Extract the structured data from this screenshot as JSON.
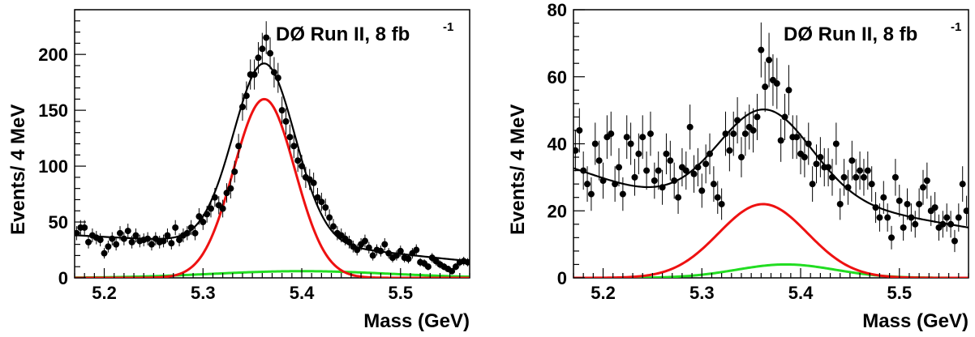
{
  "chart_data": [
    {
      "type": "scatter",
      "annotation": "DØ Run II, 8 fb",
      "annotation_sup": "-1",
      "xlabel": "Mass (GeV)",
      "ylabel": "Events/  4 MeV",
      "xlim": [
        5.17,
        5.57
      ],
      "ylim": [
        0,
        240
      ],
      "xticks": [
        "5.2",
        "5.3",
        "5.4",
        "5.5"
      ],
      "yticks": [
        "0",
        "50",
        "100",
        "150",
        "200"
      ],
      "series": [
        {
          "kind": "points",
          "color": "#000000",
          "x": [
            5.172,
            5.176,
            5.18,
            5.184,
            5.188,
            5.192,
            5.196,
            5.2,
            5.204,
            5.208,
            5.212,
            5.216,
            5.22,
            5.224,
            5.228,
            5.232,
            5.236,
            5.24,
            5.244,
            5.248,
            5.252,
            5.256,
            5.26,
            5.264,
            5.268,
            5.272,
            5.276,
            5.28,
            5.284,
            5.288,
            5.292,
            5.296,
            5.3,
            5.304,
            5.308,
            5.312,
            5.316,
            5.32,
            5.324,
            5.328,
            5.332,
            5.336,
            5.34,
            5.344,
            5.348,
            5.352,
            5.356,
            5.36,
            5.364,
            5.368,
            5.372,
            5.376,
            5.38,
            5.384,
            5.388,
            5.392,
            5.396,
            5.4,
            5.404,
            5.408,
            5.412,
            5.416,
            5.42,
            5.424,
            5.428,
            5.432,
            5.436,
            5.44,
            5.444,
            5.448,
            5.452,
            5.456,
            5.46,
            5.464,
            5.468,
            5.472,
            5.476,
            5.48,
            5.484,
            5.488,
            5.492,
            5.496,
            5.5,
            5.504,
            5.508,
            5.512,
            5.516,
            5.52,
            5.524,
            5.528,
            5.532,
            5.536,
            5.54,
            5.544,
            5.548,
            5.552,
            5.556,
            5.56,
            5.564,
            5.568
          ],
          "y": [
            40,
            45,
            45,
            32,
            38,
            36,
            34,
            22,
            28,
            35,
            30,
            40,
            35,
            42,
            32,
            38,
            33,
            34,
            35,
            30,
            35,
            32,
            33,
            38,
            31,
            45,
            34,
            38,
            40,
            45,
            40,
            55,
            50,
            57,
            62,
            72,
            65,
            62,
            76,
            80,
            95,
            118,
            153,
            163,
            182,
            182,
            197,
            205,
            215,
            201,
            184,
            179,
            150,
            140,
            126,
            118,
            105,
            100,
            90,
            88,
            85,
            72,
            68,
            63,
            54,
            46,
            40,
            38,
            35,
            32,
            28,
            25,
            30,
            33,
            27,
            20,
            25,
            24,
            30,
            22,
            18,
            20,
            24,
            18,
            17,
            22,
            25,
            14,
            13,
            10,
            18,
            15,
            12,
            10,
            8,
            6,
            10,
            14,
            15,
            14
          ],
          "err": [
            6.3,
            6.7,
            6.7,
            5.7,
            6.2,
            6.0,
            5.8,
            4.7,
            5.3,
            5.9,
            5.5,
            6.3,
            5.9,
            6.5,
            5.7,
            6.2,
            5.7,
            5.8,
            5.9,
            5.5,
            5.9,
            5.7,
            5.7,
            6.2,
            5.6,
            6.7,
            5.8,
            6.2,
            6.3,
            6.7,
            6.3,
            7.4,
            7.1,
            7.5,
            7.9,
            8.5,
            8.1,
            7.9,
            8.7,
            8.9,
            9.7,
            10.9,
            12.4,
            12.8,
            13.5,
            13.5,
            14.0,
            14.3,
            14.7,
            14.2,
            13.6,
            13.4,
            12.2,
            11.8,
            11.2,
            10.9,
            10.2,
            10.0,
            9.5,
            9.4,
            9.2,
            8.5,
            8.2,
            7.9,
            7.3,
            6.8,
            6.3,
            6.2,
            5.9,
            5.7,
            5.3,
            5.0,
            5.5,
            5.7,
            5.2,
            4.5,
            5.0,
            4.9,
            5.5,
            4.7,
            4.2,
            4.5,
            4.9,
            4.2,
            4.1,
            4.7,
            5.0,
            3.7,
            3.6,
            3.2,
            4.2,
            3.9,
            3.5,
            3.2,
            2.8,
            2.4,
            3.2,
            3.7,
            3.9,
            3.7
          ]
        },
        {
          "kind": "curve",
          "component": "total",
          "color": "#000000",
          "bkg": [
            38,
            14,
            5.17,
            0.4
          ],
          "sig": [
            160,
            5.362,
            0.031
          ],
          "sig2": [
            6,
            5.4,
            0.09
          ]
        },
        {
          "kind": "curve",
          "component": "signal",
          "color": "#ee1111",
          "sig": [
            160,
            5.362,
            0.031
          ]
        },
        {
          "kind": "curve",
          "component": "reflection",
          "color": "#22dd22",
          "sig2": [
            6,
            5.4,
            0.09
          ]
        }
      ]
    },
    {
      "type": "scatter",
      "annotation": "DØ Run II, 8 fb",
      "annotation_sup": "-1",
      "xlabel": "Mass (GeV)",
      "ylabel": "Events/  4 MeV",
      "xlim": [
        5.17,
        5.57
      ],
      "ylim": [
        0,
        80
      ],
      "xticks": [
        "5.2",
        "5.3",
        "5.4",
        "5.5"
      ],
      "yticks": [
        "0",
        "20",
        "40",
        "60",
        "80"
      ],
      "series": [
        {
          "kind": "points",
          "color": "#000000",
          "x": [
            5.172,
            5.176,
            5.18,
            5.184,
            5.188,
            5.192,
            5.196,
            5.2,
            5.204,
            5.208,
            5.212,
            5.216,
            5.22,
            5.224,
            5.228,
            5.232,
            5.236,
            5.24,
            5.244,
            5.248,
            5.252,
            5.256,
            5.26,
            5.264,
            5.268,
            5.272,
            5.276,
            5.28,
            5.284,
            5.288,
            5.292,
            5.296,
            5.3,
            5.304,
            5.308,
            5.312,
            5.316,
            5.32,
            5.324,
            5.328,
            5.332,
            5.336,
            5.34,
            5.344,
            5.348,
            5.352,
            5.356,
            5.36,
            5.364,
            5.368,
            5.372,
            5.376,
            5.38,
            5.384,
            5.388,
            5.392,
            5.396,
            5.4,
            5.404,
            5.408,
            5.412,
            5.416,
            5.42,
            5.424,
            5.428,
            5.432,
            5.436,
            5.44,
            5.444,
            5.448,
            5.452,
            5.456,
            5.46,
            5.464,
            5.468,
            5.472,
            5.476,
            5.48,
            5.484,
            5.488,
            5.492,
            5.496,
            5.5,
            5.504,
            5.508,
            5.512,
            5.516,
            5.52,
            5.524,
            5.528,
            5.532,
            5.536,
            5.54,
            5.544,
            5.548,
            5.552,
            5.556,
            5.56,
            5.564,
            5.568
          ],
          "y": [
            38,
            44,
            32,
            28,
            25,
            40,
            35,
            29,
            42,
            43,
            28,
            33,
            25,
            42,
            40,
            30,
            37,
            42,
            32,
            43,
            29,
            32,
            27,
            37,
            35,
            29,
            24,
            33,
            32,
            45,
            31,
            33,
            26,
            34,
            37,
            28,
            24,
            22,
            43,
            38,
            43,
            47,
            36,
            43,
            45,
            44,
            48,
            68,
            57,
            65,
            59,
            58,
            41,
            48,
            56,
            42,
            42,
            37,
            36,
            40,
            28,
            34,
            36,
            33,
            33,
            30,
            40,
            22,
            30,
            27,
            35,
            30,
            32,
            30,
            32,
            28,
            21,
            18,
            24,
            18,
            12,
            30,
            23,
            15,
            22,
            18,
            16,
            22,
            27,
            29,
            20,
            21,
            15,
            16,
            18,
            16,
            11,
            18,
            28,
            20
          ],
          "err": [
            6.2,
            6.6,
            5.7,
            5.3,
            5.0,
            6.3,
            5.9,
            5.4,
            6.5,
            6.6,
            5.3,
            5.7,
            5.0,
            6.5,
            6.3,
            5.5,
            6.1,
            6.5,
            5.7,
            6.6,
            5.4,
            5.7,
            5.2,
            6.1,
            5.9,
            5.4,
            4.9,
            5.7,
            5.7,
            6.7,
            5.6,
            5.7,
            5.1,
            5.8,
            6.1,
            5.3,
            4.9,
            4.7,
            6.6,
            6.2,
            6.6,
            6.9,
            6.0,
            6.6,
            6.7,
            6.6,
            6.9,
            8.2,
            7.5,
            8.1,
            7.7,
            7.6,
            6.4,
            6.9,
            7.5,
            6.5,
            6.5,
            6.1,
            6.0,
            6.3,
            5.3,
            5.8,
            6.0,
            5.7,
            5.7,
            5.5,
            6.3,
            4.7,
            5.5,
            5.2,
            5.9,
            5.5,
            5.7,
            5.5,
            5.7,
            5.3,
            4.6,
            4.2,
            4.9,
            4.2,
            3.5,
            5.5,
            4.8,
            3.9,
            4.7,
            4.2,
            4.0,
            4.7,
            5.2,
            5.4,
            4.5,
            4.6,
            3.9,
            4.0,
            4.2,
            4.0,
            3.3,
            4.2,
            5.3,
            4.5
          ]
        },
        {
          "kind": "curve",
          "component": "total",
          "color": "#000000",
          "bkg": [
            35,
            15,
            5.17,
            0.4
          ],
          "sig": [
            22,
            5.362,
            0.045
          ],
          "sig2": [
            4,
            5.385,
            0.05
          ],
          "dip": [
            5,
            5.245,
            0.06
          ]
        },
        {
          "kind": "curve",
          "component": "signal",
          "color": "#ee1111",
          "sig": [
            22,
            5.362,
            0.045
          ]
        },
        {
          "kind": "curve",
          "component": "reflection",
          "color": "#22dd22",
          "sig2": [
            4,
            5.385,
            0.05
          ]
        }
      ]
    }
  ]
}
